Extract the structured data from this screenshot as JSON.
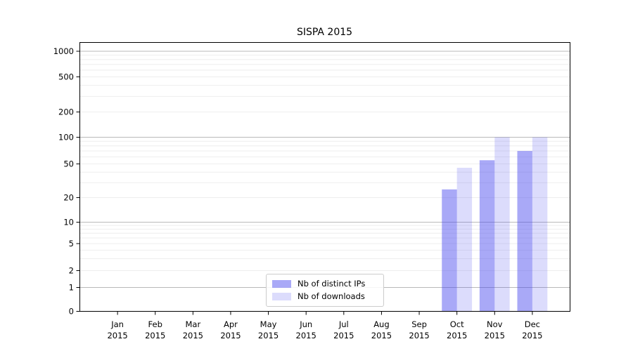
{
  "chart_data": {
    "type": "bar",
    "title": "SISPA 2015",
    "x_axis": {
      "categories": [
        {
          "month": "Jan",
          "year": "2015"
        },
        {
          "month": "Feb",
          "year": "2015"
        },
        {
          "month": "Mar",
          "year": "2015"
        },
        {
          "month": "Apr",
          "year": "2015"
        },
        {
          "month": "May",
          "year": "2015"
        },
        {
          "month": "Jun",
          "year": "2015"
        },
        {
          "month": "Jul",
          "year": "2015"
        },
        {
          "month": "Aug",
          "year": "2015"
        },
        {
          "month": "Sep",
          "year": "2015"
        },
        {
          "month": "Oct",
          "year": "2015"
        },
        {
          "month": "Nov",
          "year": "2015"
        },
        {
          "month": "Dec",
          "year": "2015"
        }
      ]
    },
    "y_axis": {
      "scale": "symlog",
      "ticks": [
        0,
        1,
        2,
        5,
        10,
        20,
        50,
        100,
        200,
        500,
        1000
      ],
      "top_limit": 1290,
      "grid": "major-and-minor"
    },
    "series": [
      {
        "name": "Nb of distinct IPs",
        "color": "rgba(68,68,238,0.46)",
        "values": [
          0,
          0,
          0,
          0,
          0,
          0,
          0,
          0,
          0,
          25,
          55,
          70
        ]
      },
      {
        "name": "Nb of downloads",
        "color": "rgba(68,68,238,0.19)",
        "values": [
          0,
          0,
          0,
          0,
          0,
          0,
          0,
          0,
          0,
          45,
          100,
          100
        ]
      }
    ],
    "legend": {
      "position": "lower center"
    }
  }
}
